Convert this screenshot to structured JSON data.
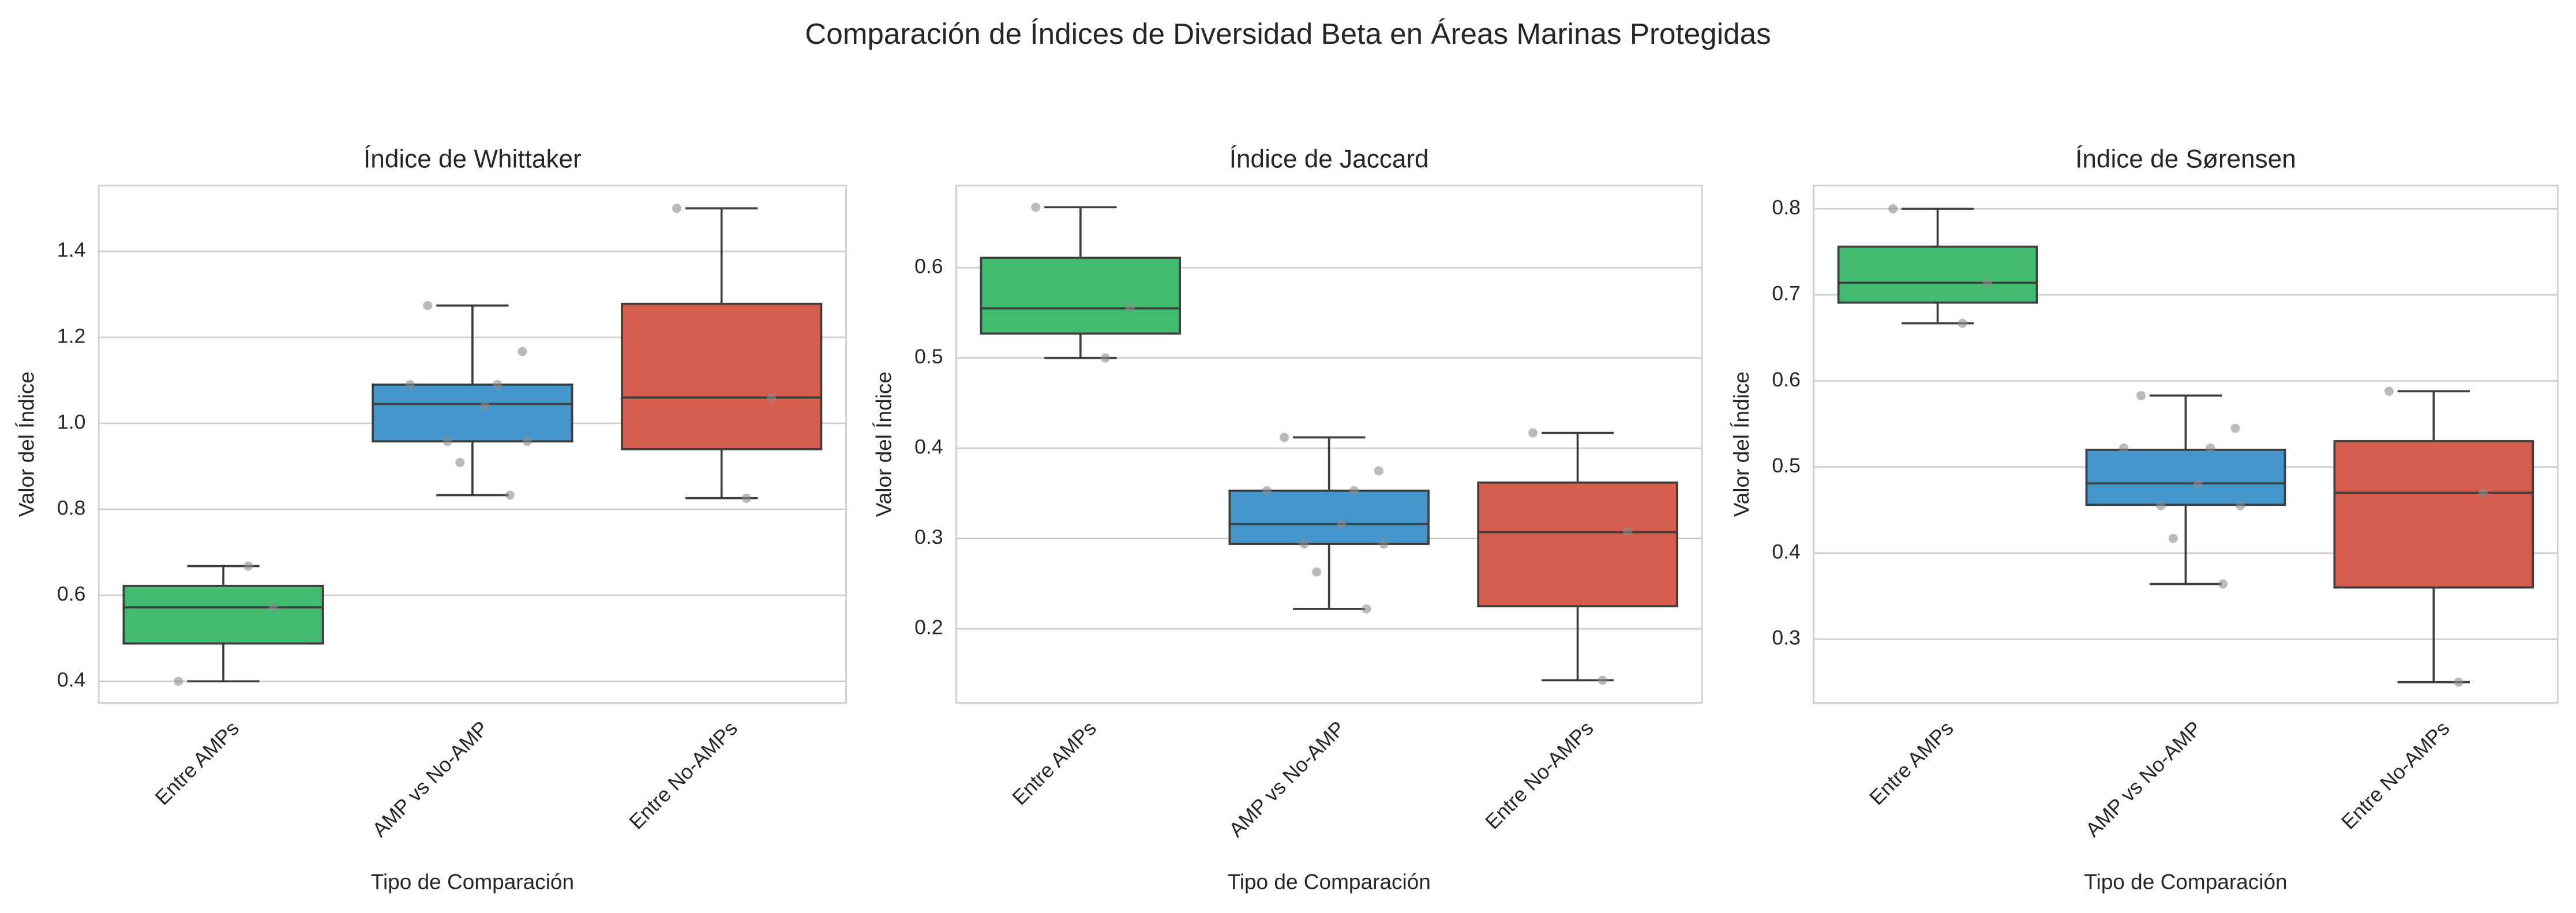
{
  "title": "Comparación de Índices de Diversidad Beta en Áreas Marinas Protegidas",
  "chart_data": [
    {
      "type": "box",
      "title": "Índice de Whittaker",
      "xlabel": "Tipo de Comparación",
      "ylabel": "Valor del Índice",
      "categories": [
        "Entre AMPs",
        "AMP vs No-AMP",
        "Entre No-AMPs"
      ],
      "colors": [
        "#40bb6f",
        "#4596cb",
        "#d55d4e"
      ],
      "boxes": [
        {
          "whislo": 0.4,
          "q1": 0.488,
          "med": 0.572,
          "q3": 0.622,
          "whishi": 0.668,
          "points": [
            0.4,
            0.572,
            0.668
          ]
        },
        {
          "whislo": 0.833,
          "q1": 0.958,
          "med": 1.045,
          "q3": 1.09,
          "whishi": 1.274,
          "points": [
            1.274,
            1.167,
            1.09,
            1.09,
            1.04,
            0.958,
            0.958,
            0.909,
            0.833
          ]
        },
        {
          "whislo": 0.826,
          "q1": 0.94,
          "med": 1.06,
          "q3": 1.278,
          "whishi": 1.5,
          "points": [
            1.5,
            1.06,
            0.826
          ]
        }
      ],
      "ylim": [
        0.35,
        1.553
      ],
      "yticks": [
        0.4,
        0.6,
        0.8,
        {
          "value": 1,
          "label": "1.0"
        },
        1.2,
        1.4
      ],
      "grid": true
    },
    {
      "type": "box",
      "title": "Índice de Jaccard",
      "xlabel": "Tipo de Comparación",
      "ylabel": "Valor del Índice",
      "categories": [
        "Entre AMPs",
        "AMP vs No-AMP",
        "Entre No-AMPs"
      ],
      "colors": [
        "#40bb6f",
        "#4596cb",
        "#d55d4e"
      ],
      "boxes": [
        {
          "whislo": 0.5,
          "q1": 0.527,
          "med": 0.555,
          "q3": 0.611,
          "whishi": 0.667,
          "points": [
            0.667,
            0.556,
            0.5
          ]
        },
        {
          "whislo": 0.222,
          "q1": 0.294,
          "med": 0.316,
          "q3": 0.353,
          "whishi": 0.412,
          "points": [
            0.412,
            0.375,
            0.353,
            0.353,
            0.316,
            0.294,
            0.294,
            0.263,
            0.222
          ]
        },
        {
          "whislo": 0.143,
          "q1": 0.225,
          "med": 0.307,
          "q3": 0.362,
          "whishi": 0.417,
          "points": [
            0.417,
            0.308,
            0.143
          ]
        }
      ],
      "ylim": [
        0.118,
        0.691
      ],
      "yticks": [
        0.2,
        0.3,
        0.4,
        0.5,
        0.6
      ],
      "grid": true
    },
    {
      "type": "box",
      "title": "Índice de Sørensen",
      "xlabel": "Tipo de Comparación",
      "ylabel": "Valor del Índice",
      "categories": [
        "Entre AMPs",
        "AMP vs No-AMP",
        "Entre No-AMPs"
      ],
      "colors": [
        "#40bb6f",
        "#4596cb",
        "#d55d4e"
      ],
      "boxes": [
        {
          "whislo": 0.667,
          "q1": 0.691,
          "med": 0.714,
          "q3": 0.756,
          "whishi": 0.8,
          "points": [
            0.8,
            0.714,
            0.667
          ]
        },
        {
          "whislo": 0.364,
          "q1": 0.456,
          "med": 0.481,
          "q3": 0.52,
          "whishi": 0.583,
          "points": [
            0.583,
            0.545,
            0.522,
            0.522,
            0.48,
            0.455,
            0.455,
            0.417,
            0.364
          ]
        },
        {
          "whislo": 0.25,
          "q1": 0.36,
          "med": 0.47,
          "q3": 0.53,
          "whishi": 0.588,
          "points": [
            0.588,
            0.47,
            0.25
          ]
        }
      ],
      "ylim": [
        0.226,
        0.827
      ],
      "yticks": [
        0.3,
        0.4,
        0.5,
        0.6,
        0.7,
        0.8
      ],
      "grid": true
    }
  ]
}
